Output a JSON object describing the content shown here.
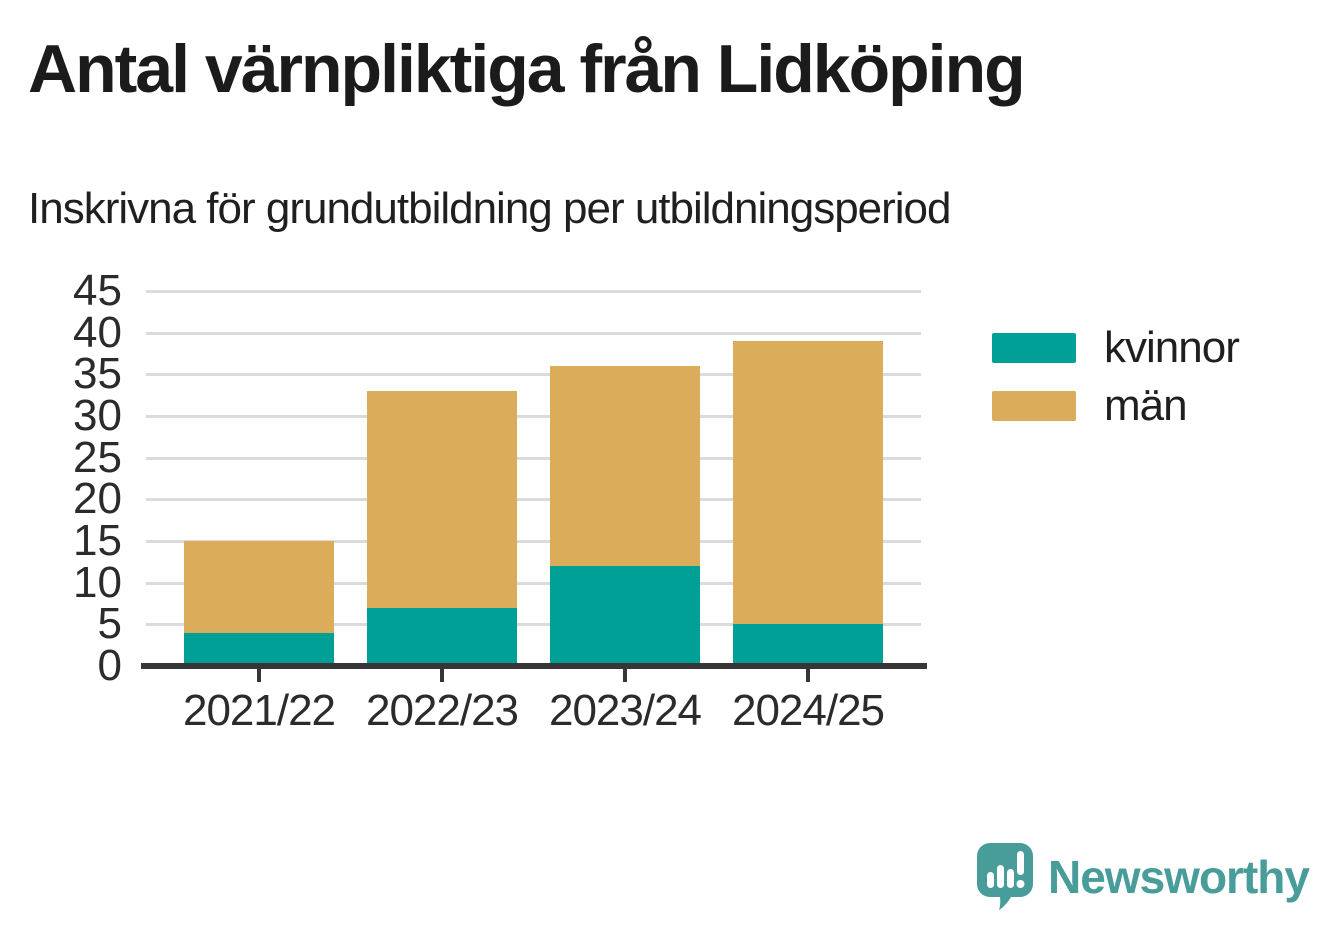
{
  "title": "Antal värnpliktiga från Lidköping",
  "subtitle": "Inskrivna för grundutbildning per utbildningsperiod",
  "legend": {
    "items": [
      {
        "label": "kvinnor",
        "color": "#00a096"
      },
      {
        "label": "män",
        "color": "#dbac59"
      }
    ]
  },
  "logo": {
    "text": "Newsworthy",
    "color": "#489c9a"
  },
  "colors": {
    "kvinnor": "#00a096",
    "man": "#dbac59",
    "axis": "#363636",
    "grid": "#dbdbdb",
    "text": "#1c1c1c"
  },
  "chart_data": {
    "type": "bar",
    "stacked": true,
    "title": "Antal värnpliktiga från Lidköping",
    "subtitle": "Inskrivna för grundutbildning per utbildningsperiod",
    "categories": [
      "2021/22",
      "2022/23",
      "2023/24",
      "2024/25"
    ],
    "series": [
      {
        "name": "kvinnor",
        "color": "#00a096",
        "values": [
          4,
          7,
          12,
          5
        ]
      },
      {
        "name": "män",
        "color": "#dbac59",
        "values": [
          11,
          26,
          24,
          34
        ]
      }
    ],
    "totals": [
      15,
      33,
      36,
      39
    ],
    "xlabel": "",
    "ylabel": "",
    "ylim": [
      0,
      45
    ],
    "yticks": [
      0,
      5,
      10,
      15,
      20,
      25,
      30,
      35,
      40,
      45
    ],
    "grid": true,
    "legend_position": "right"
  }
}
